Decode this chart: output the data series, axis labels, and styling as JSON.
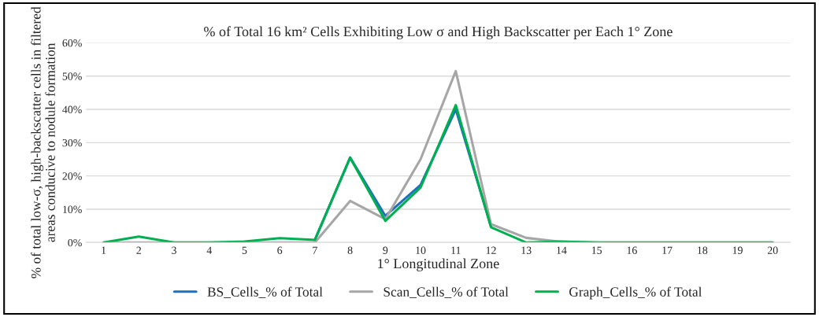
{
  "chart_data": {
    "type": "line",
    "title": "% of Total 16 km² Cells Exhibiting Low σ and High Backscatter per Each 1° Zone",
    "xlabel": "1° Longitudinal Zone",
    "ylabel": "% of total low-σ, high-backscatter cells in filtered areas conducive to nodule formation",
    "categories": [
      "1",
      "2",
      "3",
      "4",
      "5",
      "6",
      "7",
      "8",
      "9",
      "10",
      "11",
      "12",
      "13",
      "14",
      "15",
      "16",
      "17",
      "18",
      "19",
      "20"
    ],
    "series": [
      {
        "name": "BS_Cells_% of Total",
        "color": "#1f6fc0",
        "values": [
          null,
          null,
          null,
          null,
          null,
          null,
          0.8,
          25.5,
          8,
          17.3,
          40,
          4.8,
          null,
          null,
          null,
          null,
          null,
          null,
          null,
          null
        ]
      },
      {
        "name": "Scan_Cells_% of Total",
        "color": "#a6a6a6",
        "values": [
          0,
          0,
          0,
          0,
          0,
          0,
          0,
          12.5,
          7,
          25,
          51.5,
          5.5,
          1.4,
          0.2,
          0,
          0,
          0,
          0,
          0,
          0
        ]
      },
      {
        "name": "Graph_Cells_% of Total",
        "color": "#00b050",
        "values": [
          0,
          1.8,
          0,
          0,
          0.3,
          1.3,
          0.8,
          25.5,
          6.5,
          16.5,
          41.3,
          4.6,
          0,
          0.3,
          0,
          0,
          0,
          0,
          0,
          0
        ]
      }
    ],
    "ylim": [
      0,
      60
    ],
    "yticks": [
      {
        "value": 0,
        "label": "0%"
      },
      {
        "value": 10,
        "label": "10%"
      },
      {
        "value": 20,
        "label": "20%"
      },
      {
        "value": 30,
        "label": "30%"
      },
      {
        "value": 40,
        "label": "40%"
      },
      {
        "value": 50,
        "label": "50%"
      },
      {
        "value": 60,
        "label": "60%"
      }
    ],
    "grid": "y",
    "legend": "bottom",
    "marker": "none",
    "line_style": "solid"
  }
}
